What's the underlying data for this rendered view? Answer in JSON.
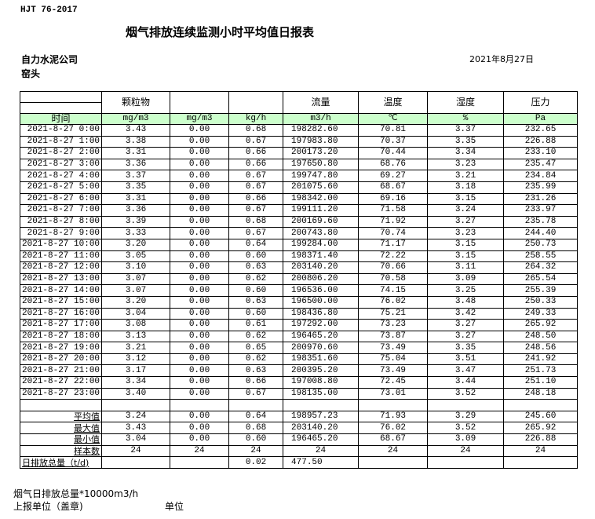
{
  "header": {
    "standard": "HJT  76-2017",
    "title": "烟气排放连续监测小时平均值日报表",
    "company": "自力水泥公司",
    "location": "窑头",
    "date": "2021年8月27日"
  },
  "table": {
    "columns": [
      "颗粒物",
      "",
      "",
      "流量",
      "温度",
      "湿度",
      "压力"
    ],
    "time_header": "时间",
    "units": [
      "mg/m3",
      "mg/m3",
      "kg/h",
      "m3/h",
      "℃",
      "%",
      "Pa"
    ],
    "rows": [
      [
        "2021-8-27 0:00",
        "3.43",
        "0.00",
        "0.68",
        "198282.60",
        "70.81",
        "3.37",
        "232.65"
      ],
      [
        "2021-8-27 1:00",
        "3.38",
        "0.00",
        "0.67",
        "197983.80",
        "70.37",
        "3.35",
        "226.88"
      ],
      [
        "2021-8-27 2:00",
        "3.31",
        "0.00",
        "0.66",
        "200173.20",
        "70.44",
        "3.34",
        "233.10"
      ],
      [
        "2021-8-27 3:00",
        "3.36",
        "0.00",
        "0.66",
        "197650.80",
        "68.76",
        "3.23",
        "235.47"
      ],
      [
        "2021-8-27 4:00",
        "3.37",
        "0.00",
        "0.67",
        "199747.80",
        "69.27",
        "3.21",
        "234.84"
      ],
      [
        "2021-8-27 5:00",
        "3.35",
        "0.00",
        "0.67",
        "201075.60",
        "68.67",
        "3.18",
        "235.99"
      ],
      [
        "2021-8-27 6:00",
        "3.31",
        "0.00",
        "0.66",
        "198342.00",
        "69.16",
        "3.15",
        "231.26"
      ],
      [
        "2021-8-27 7:00",
        "3.36",
        "0.00",
        "0.67",
        "199111.20",
        "71.58",
        "3.24",
        "233.97"
      ],
      [
        "2021-8-27 8:00",
        "3.39",
        "0.00",
        "0.68",
        "200169.60",
        "71.92",
        "3.27",
        "235.78"
      ],
      [
        "2021-8-27 9:00",
        "3.33",
        "0.00",
        "0.67",
        "200743.80",
        "70.74",
        "3.23",
        "244.40"
      ],
      [
        "2021-8-27 10:00",
        "3.20",
        "0.00",
        "0.64",
        "199284.00",
        "71.17",
        "3.15",
        "250.73"
      ],
      [
        "2021-8-27 11:00",
        "3.05",
        "0.00",
        "0.60",
        "198371.40",
        "72.22",
        "3.15",
        "258.55"
      ],
      [
        "2021-8-27 12:00",
        "3.10",
        "0.00",
        "0.63",
        "203140.20",
        "70.66",
        "3.11",
        "264.32"
      ],
      [
        "2021-8-27 13:00",
        "3.07",
        "0.00",
        "0.62",
        "200806.20",
        "70.58",
        "3.09",
        "265.54"
      ],
      [
        "2021-8-27 14:00",
        "3.07",
        "0.00",
        "0.60",
        "196536.00",
        "74.15",
        "3.25",
        "255.39"
      ],
      [
        "2021-8-27 15:00",
        "3.20",
        "0.00",
        "0.63",
        "196500.00",
        "76.02",
        "3.48",
        "250.33"
      ],
      [
        "2021-8-27 16:00",
        "3.04",
        "0.00",
        "0.60",
        "198436.80",
        "75.21",
        "3.42",
        "249.33"
      ],
      [
        "2021-8-27 17:00",
        "3.08",
        "0.00",
        "0.61",
        "197292.00",
        "73.23",
        "3.27",
        "265.92"
      ],
      [
        "2021-8-27 18:00",
        "3.13",
        "0.00",
        "0.62",
        "196465.20",
        "73.87",
        "3.27",
        "248.50"
      ],
      [
        "2021-8-27 19:00",
        "3.21",
        "0.00",
        "0.65",
        "200970.60",
        "73.49",
        "3.35",
        "248.56"
      ],
      [
        "2021-8-27 20:00",
        "3.12",
        "0.00",
        "0.62",
        "198351.60",
        "75.04",
        "3.51",
        "241.92"
      ],
      [
        "2021-8-27 21:00",
        "3.17",
        "0.00",
        "0.63",
        "200395.20",
        "73.49",
        "3.47",
        "251.73"
      ],
      [
        "2021-8-27 22:00",
        "3.34",
        "0.00",
        "0.66",
        "197008.80",
        "72.45",
        "3.44",
        "251.10"
      ],
      [
        "2021-8-27 23:00",
        "3.40",
        "0.00",
        "0.67",
        "198135.00",
        "73.01",
        "3.52",
        "248.18"
      ]
    ],
    "summary": [
      [
        "平均值",
        "3.24",
        "0.00",
        "0.64",
        "198957.23",
        "71.93",
        "3.29",
        "245.60"
      ],
      [
        "最大值",
        "3.43",
        "0.00",
        "0.68",
        "203140.20",
        "76.02",
        "3.52",
        "265.92"
      ],
      [
        "最小值",
        "3.04",
        "0.00",
        "0.60",
        "196465.20",
        "68.67",
        "3.09",
        "226.88"
      ],
      [
        "样本数",
        "24",
        "24",
        "24",
        "24",
        "24",
        "24",
        "24"
      ]
    ],
    "total": [
      "日排放总量（t/d)",
      "",
      "",
      "0.02",
      "477.50",
      "",
      "",
      ""
    ]
  },
  "footer": {
    "note": "烟气日排放总量*10000m3/h",
    "report_unit": "上报单位（盖章)",
    "unit": "单位"
  },
  "colors": {
    "unit_row_bg": "#ccffcc"
  }
}
